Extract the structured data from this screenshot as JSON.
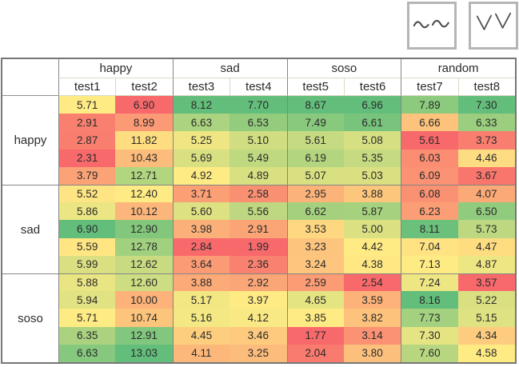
{
  "toolbar": {
    "buttons": [
      {
        "name": "wave-tool-button",
        "icon": "double-tilde-icon"
      },
      {
        "name": "chevron-tool-button",
        "icon": "double-chevron-down-icon"
      }
    ]
  },
  "chart_data": {
    "type": "heatmap",
    "title": "",
    "column_groups": [
      {
        "label": "happy",
        "columns": [
          "test1",
          "test2"
        ]
      },
      {
        "label": "sad",
        "columns": [
          "test3",
          "test4"
        ]
      },
      {
        "label": "soso",
        "columns": [
          "test5",
          "test6"
        ]
      },
      {
        "label": "random",
        "columns": [
          "test7",
          "test8"
        ]
      }
    ],
    "row_groups": [
      {
        "label": "happy",
        "values": [
          [
            5.71,
            6.9,
            8.12,
            7.7,
            8.67,
            6.96,
            7.89,
            7.3
          ],
          [
            2.91,
            8.99,
            6.63,
            6.53,
            7.49,
            6.61,
            6.66,
            6.33
          ],
          [
            2.87,
            11.82,
            5.25,
            5.1,
            5.61,
            5.08,
            5.61,
            3.73
          ],
          [
            2.31,
            10.43,
            5.69,
            5.49,
            6.19,
            5.35,
            6.03,
            4.46
          ],
          [
            3.79,
            12.71,
            4.92,
            4.89,
            5.07,
            5.03,
            6.09,
            3.67
          ]
        ]
      },
      {
        "label": "sad",
        "values": [
          [
            5.52,
            12.4,
            3.71,
            2.58,
            2.95,
            3.88,
            6.08,
            4.07
          ],
          [
            5.86,
            10.12,
            5.6,
            5.56,
            6.62,
            5.87,
            6.23,
            6.5
          ],
          [
            6.9,
            12.9,
            3.98,
            2.91,
            3.53,
            5.0,
            8.11,
            5.73
          ],
          [
            5.59,
            12.78,
            2.84,
            1.99,
            3.23,
            4.42,
            7.04,
            4.47
          ],
          [
            5.99,
            12.62,
            3.64,
            2.36,
            3.24,
            4.38,
            7.13,
            4.87
          ]
        ]
      },
      {
        "label": "soso",
        "values": [
          [
            5.88,
            12.6,
            3.88,
            2.92,
            2.59,
            2.54,
            7.24,
            3.57
          ],
          [
            5.94,
            10.0,
            5.17,
            3.97,
            4.65,
            3.59,
            8.16,
            5.22
          ],
          [
            5.71,
            10.74,
            5.16,
            4.12,
            3.85,
            3.82,
            7.73,
            5.15
          ],
          [
            6.35,
            12.91,
            4.45,
            3.46,
            1.77,
            3.14,
            7.3,
            4.34
          ],
          [
            6.63,
            13.03,
            4.11,
            3.25,
            2.04,
            3.8,
            7.6,
            4.58
          ]
        ]
      }
    ],
    "value_format": "2-decimals",
    "colormap": {
      "type": "3-color-scale",
      "scope": "per-column",
      "midpoint": "median",
      "min_color": "#f8696b",
      "mid_color": "#ffeb84",
      "max_color": "#63be7b"
    }
  }
}
